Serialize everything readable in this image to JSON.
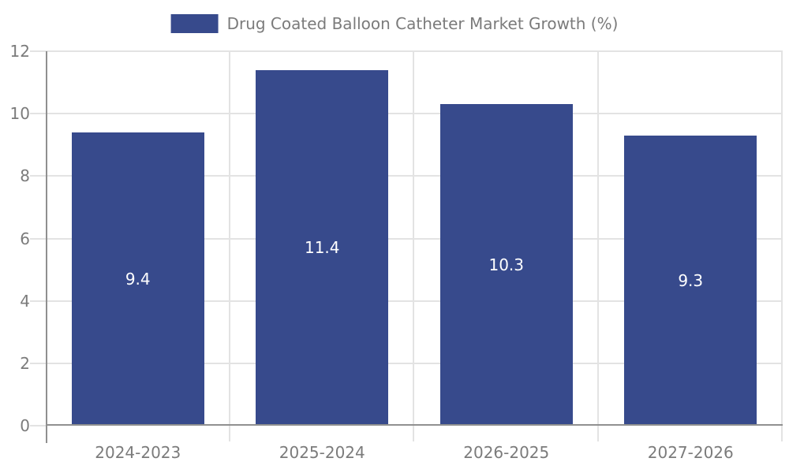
{
  "chart_data": {
    "type": "bar",
    "title": "Drug Coated Balloon Catheter Market Growth (%)",
    "legend_label": "Drug Coated Balloon Catheter Market Growth (%)",
    "legend_position": "top-center",
    "categories": [
      "2024-2023",
      "2025-2024",
      "2026-2025",
      "2027-2026"
    ],
    "values": [
      9.4,
      11.4,
      10.3,
      9.3
    ],
    "value_labels": [
      "9.4",
      "11.4",
      "10.3",
      "9.3"
    ],
    "xlabel": "",
    "ylabel": "",
    "ylim": [
      0,
      12
    ],
    "yticks": [
      0,
      2,
      4,
      6,
      8,
      10,
      12
    ],
    "grid": true,
    "colors": {
      "bar": "#374a8c",
      "value_label": "#ffffff",
      "tick_label": "#7b7b7b",
      "legend_text": "#7b7b7b",
      "gridline": "#e3e3e3",
      "spine": "#909090",
      "background": "#ffffff"
    }
  }
}
